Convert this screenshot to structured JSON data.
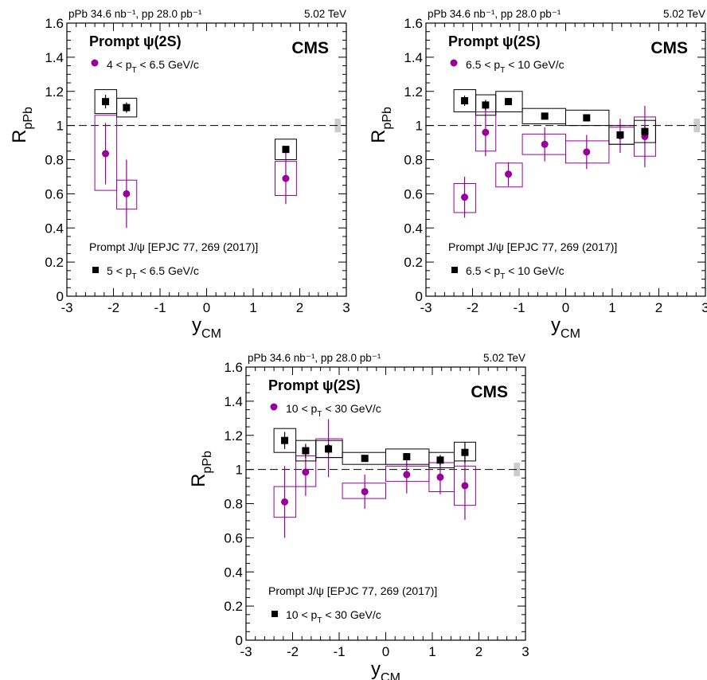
{
  "chart_data": [
    {
      "type": "scatter",
      "lumi_label": "pPb 34.6 nb⁻¹, pp 28.0 pb⁻¹",
      "energy_label": "5.02 TeV",
      "experiment": "CMS",
      "xlabel": "y",
      "xlabel_sub": "CM",
      "ylabel": "R",
      "ylabel_sub": "pPb",
      "xlim": [
        -3,
        3
      ],
      "ylim": [
        0,
        1.6
      ],
      "xticks": [
        -3,
        -2,
        -1,
        0,
        1,
        2,
        3
      ],
      "yticks": [
        0,
        0.2,
        0.4,
        0.6,
        0.8,
        1,
        1.2,
        1.4,
        1.6
      ],
      "reference_line": 1,
      "global_uncertainty": [
        0.96,
        1.04
      ],
      "legend_top": {
        "title": "Prompt  ψ(2S)",
        "entry": "4 < p",
        "entry_sub": "T",
        "entry_tail": " < 6.5 GeV/c"
      },
      "legend_bottom": {
        "title": "Prompt J/ψ [EPJC 77, 269 (2017)]",
        "entry": "5 < p",
        "entry_sub": "T",
        "entry_tail": " < 6.5 GeV/c"
      },
      "series": [
        {
          "name": "Prompt ψ(2S)",
          "color": "#990099",
          "points": [
            {
              "x": -2.17,
              "y": 0.835,
              "stat": 0.18,
              "bx": [
                -2.4,
                -1.93
              ],
              "by": [
                0.62,
                1.06
              ]
            },
            {
              "x": -1.72,
              "y": 0.6,
              "stat": 0.2,
              "bx": [
                -1.93,
                -1.5
              ],
              "by": [
                0.51,
                0.68
              ]
            },
            {
              "x": 1.7,
              "y": 0.69,
              "stat": 0.15,
              "bx": [
                1.47,
                1.93
              ],
              "by": [
                0.59,
                0.79
              ]
            }
          ]
        },
        {
          "name": "Prompt J/ψ",
          "color": "#000000",
          "points": [
            {
              "x": -2.17,
              "y": 1.14,
              "stat": 0.04,
              "bx": [
                -2.4,
                -1.93
              ],
              "by": [
                1.07,
                1.21
              ]
            },
            {
              "x": -1.72,
              "y": 1.105,
              "stat": 0.03,
              "bx": [
                -1.93,
                -1.5
              ],
              "by": [
                1.05,
                1.16
              ]
            },
            {
              "x": 1.7,
              "y": 0.86,
              "stat": 0.02,
              "bx": [
                1.47,
                1.93
              ],
              "by": [
                0.8,
                0.92
              ]
            }
          ]
        }
      ]
    },
    {
      "type": "scatter",
      "lumi_label": "pPb 34.6 nb⁻¹, pp 28.0 pb⁻¹",
      "energy_label": "5.02 TeV",
      "experiment": "CMS",
      "xlabel": "y",
      "xlabel_sub": "CM",
      "ylabel": "R",
      "ylabel_sub": "pPb",
      "xlim": [
        -3,
        3
      ],
      "ylim": [
        0,
        1.6
      ],
      "xticks": [
        -3,
        -2,
        -1,
        0,
        1,
        2,
        3
      ],
      "yticks": [
        0,
        0.2,
        0.4,
        0.6,
        0.8,
        1,
        1.2,
        1.4,
        1.6
      ],
      "reference_line": 1,
      "global_uncertainty": [
        0.96,
        1.04
      ],
      "legend_top": {
        "title": "Prompt  ψ(2S)",
        "entry": "6.5 < p",
        "entry_sub": "T",
        "entry_tail": " < 10 GeV/c"
      },
      "legend_bottom": {
        "title": "Prompt J/ψ [EPJC 77, 269 (2017)]",
        "entry": "6.5 < p",
        "entry_sub": "T",
        "entry_tail": " < 10 GeV/c"
      },
      "series": [
        {
          "name": "Prompt ψ(2S)",
          "color": "#990099",
          "points": [
            {
              "x": -2.17,
              "y": 0.58,
              "stat": 0.12,
              "bx": [
                -2.4,
                -1.93
              ],
              "by": [
                0.49,
                0.66
              ]
            },
            {
              "x": -1.72,
              "y": 0.96,
              "stat": 0.14,
              "bx": [
                -1.93,
                -1.5
              ],
              "by": [
                0.85,
                1.08
              ]
            },
            {
              "x": -1.23,
              "y": 0.715,
              "stat": 0.07,
              "bx": [
                -1.5,
                -0.93
              ],
              "by": [
                0.64,
                0.78
              ]
            },
            {
              "x": -0.45,
              "y": 0.89,
              "stat": 0.1,
              "bx": [
                -0.93,
                0.0
              ],
              "by": [
                0.83,
                0.95
              ]
            },
            {
              "x": 0.45,
              "y": 0.845,
              "stat": 0.1,
              "bx": [
                0.0,
                0.93
              ],
              "by": [
                0.78,
                0.91
              ]
            },
            {
              "x": 1.17,
              "y": 0.94,
              "stat": 0.1,
              "bx": [
                0.93,
                1.47
              ],
              "by": [
                0.89,
                0.99
              ]
            },
            {
              "x": 1.7,
              "y": 0.935,
              "stat": 0.18,
              "bx": [
                1.47,
                1.93
              ],
              "by": [
                0.82,
                1.05
              ]
            }
          ]
        },
        {
          "name": "Prompt J/ψ",
          "color": "#000000",
          "points": [
            {
              "x": -2.17,
              "y": 1.145,
              "stat": 0.03,
              "bx": [
                -2.4,
                -1.93
              ],
              "by": [
                1.08,
                1.21
              ]
            },
            {
              "x": -1.72,
              "y": 1.12,
              "stat": 0.03,
              "bx": [
                -1.93,
                -1.5
              ],
              "by": [
                1.06,
                1.18
              ]
            },
            {
              "x": -1.23,
              "y": 1.14,
              "stat": 0.02,
              "bx": [
                -1.5,
                -0.93
              ],
              "by": [
                1.08,
                1.2
              ]
            },
            {
              "x": -0.45,
              "y": 1.055,
              "stat": 0.02,
              "bx": [
                -0.93,
                0.0
              ],
              "by": [
                1.01,
                1.1
              ]
            },
            {
              "x": 0.45,
              "y": 1.045,
              "stat": 0.02,
              "bx": [
                0.0,
                0.93
              ],
              "by": [
                1.0,
                1.09
              ]
            },
            {
              "x": 1.17,
              "y": 0.945,
              "stat": 0.02,
              "bx": [
                0.93,
                1.47
              ],
              "by": [
                0.89,
                1.0
              ]
            },
            {
              "x": 1.7,
              "y": 0.965,
              "stat": 0.03,
              "bx": [
                1.47,
                1.93
              ],
              "by": [
                0.9,
                1.03
              ]
            }
          ]
        }
      ]
    },
    {
      "type": "scatter",
      "lumi_label": "pPb 34.6 nb⁻¹, pp 28.0 pb⁻¹",
      "energy_label": "5.02 TeV",
      "experiment": "CMS",
      "xlabel": "y",
      "xlabel_sub": "CM",
      "ylabel": "R",
      "ylabel_sub": "pPb",
      "xlim": [
        -3,
        3
      ],
      "ylim": [
        0,
        1.6
      ],
      "xticks": [
        -3,
        -2,
        -1,
        0,
        1,
        2,
        3
      ],
      "yticks": [
        0,
        0.2,
        0.4,
        0.6,
        0.8,
        1,
        1.2,
        1.4,
        1.6
      ],
      "reference_line": 1,
      "global_uncertainty": [
        0.96,
        1.04
      ],
      "legend_top": {
        "title": "Prompt  ψ(2S)",
        "entry": "10 < p",
        "entry_sub": "T",
        "entry_tail": " < 30 GeV/c"
      },
      "legend_bottom": {
        "title": "Prompt J/ψ [EPJC 77, 269 (2017)]",
        "entry": "10 < p",
        "entry_sub": "T",
        "entry_tail": " < 30 GeV/c"
      },
      "series": [
        {
          "name": "Prompt ψ(2S)",
          "color": "#990099",
          "points": [
            {
              "x": -2.17,
              "y": 0.81,
              "stat": 0.21,
              "bx": [
                -2.4,
                -1.93
              ],
              "by": [
                0.72,
                0.9
              ]
            },
            {
              "x": -1.72,
              "y": 0.985,
              "stat": 0.14,
              "bx": [
                -1.93,
                -1.5
              ],
              "by": [
                0.9,
                1.08
              ]
            },
            {
              "x": -1.23,
              "y": 1.125,
              "stat": 0.17,
              "bx": [
                -1.5,
                -0.93
              ],
              "by": [
                1.07,
                1.18
              ]
            },
            {
              "x": -0.45,
              "y": 0.87,
              "stat": 0.1,
              "bx": [
                -0.93,
                0.0
              ],
              "by": [
                0.83,
                0.92
              ]
            },
            {
              "x": 0.45,
              "y": 0.97,
              "stat": 0.11,
              "bx": [
                0.0,
                0.93
              ],
              "by": [
                0.93,
                1.02
              ]
            },
            {
              "x": 1.17,
              "y": 0.955,
              "stat": 0.1,
              "bx": [
                0.93,
                1.47
              ],
              "by": [
                0.87,
                1.04
              ]
            },
            {
              "x": 1.7,
              "y": 0.905,
              "stat": 0.2,
              "bx": [
                1.47,
                1.93
              ],
              "by": [
                0.79,
                1.02
              ]
            }
          ]
        },
        {
          "name": "Prompt J/ψ",
          "color": "#000000",
          "points": [
            {
              "x": -2.17,
              "y": 1.17,
              "stat": 0.05,
              "bx": [
                -2.4,
                -1.93
              ],
              "by": [
                1.1,
                1.24
              ]
            },
            {
              "x": -1.72,
              "y": 1.11,
              "stat": 0.04,
              "bx": [
                -1.93,
                -1.5
              ],
              "by": [
                1.05,
                1.17
              ]
            },
            {
              "x": -1.23,
              "y": 1.12,
              "stat": 0.03,
              "bx": [
                -1.5,
                -0.93
              ],
              "by": [
                1.07,
                1.17
              ]
            },
            {
              "x": -0.45,
              "y": 1.065,
              "stat": 0.02,
              "bx": [
                -0.93,
                0.0
              ],
              "by": [
                1.03,
                1.1
              ]
            },
            {
              "x": 0.45,
              "y": 1.075,
              "stat": 0.02,
              "bx": [
                0.0,
                0.93
              ],
              "by": [
                1.03,
                1.12
              ]
            },
            {
              "x": 1.17,
              "y": 1.055,
              "stat": 0.03,
              "bx": [
                0.93,
                1.47
              ],
              "by": [
                1.01,
                1.1
              ]
            },
            {
              "x": 1.7,
              "y": 1.1,
              "stat": 0.06,
              "bx": [
                1.47,
                1.93
              ],
              "by": [
                1.05,
                1.16
              ]
            }
          ]
        }
      ]
    }
  ]
}
